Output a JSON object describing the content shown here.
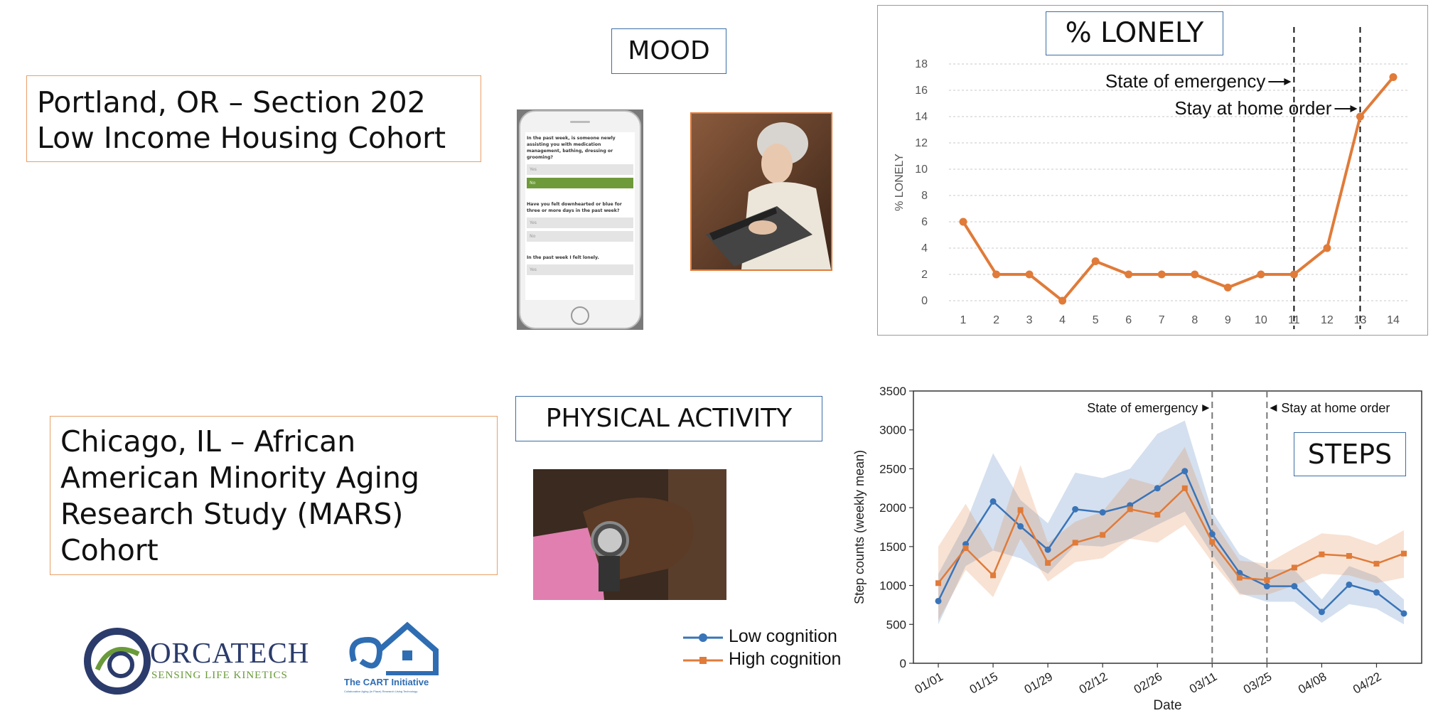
{
  "cohorts": {
    "portland": {
      "line1": "Portland, OR – Section 202",
      "line2": "Low Income Housing Cohort"
    },
    "chicago": {
      "line1": "Chicago, IL – African",
      "line2": "American Minority Aging",
      "line3": "Research Study (MARS)",
      "line4": "Cohort"
    }
  },
  "labels": {
    "mood": "MOOD",
    "physical_activity": "PHYSICAL ACTIVITY"
  },
  "phone_survey": {
    "q1": "In the past week, is someone newly assisting you with medication management, bathing, dressing or grooming?",
    "yes": "Yes",
    "no": "No",
    "q2": "Have you felt downhearted or blue for three or more days in the past week?",
    "q3": "In the past week I felt lonely."
  },
  "logos": {
    "orcatech_name": "ORCATECH",
    "orcatech_tagline": "SENSING LIFE KINETICS",
    "cart_name": "The CART Initiative",
    "cart_tagline": "Collaborative Aging (in Place) Research Using Technology"
  },
  "colors": {
    "orange": "#e07b39",
    "blue": "#3a74b8",
    "box_orange": "#e8a068",
    "box_blue": "#3b6ea5"
  },
  "chart_data": [
    {
      "type": "line",
      "title": "% LONELY",
      "ylabel": "% LONELY",
      "xlabel": "",
      "x": [
        1,
        2,
        3,
        4,
        5,
        6,
        7,
        8,
        9,
        10,
        11,
        12,
        13,
        14
      ],
      "ylim": [
        0,
        18
      ],
      "yticks": [
        0,
        2,
        4,
        6,
        8,
        10,
        12,
        14,
        16,
        18
      ],
      "values": [
        6,
        2,
        2,
        0,
        3,
        2,
        2,
        2,
        1,
        2,
        2,
        4,
        14,
        17
      ],
      "grid": "horizontal dotted",
      "annotations": [
        {
          "text": "State of emergency",
          "x": 11
        },
        {
          "text": "Stay at home order",
          "x": 13
        }
      ],
      "color": "#e07b39"
    },
    {
      "type": "line",
      "title": "STEPS",
      "xlabel": "Date",
      "ylabel": "Step counts (weekly mean)",
      "ylim": [
        0,
        3500
      ],
      "yticks": [
        0,
        500,
        1000,
        1500,
        2000,
        2500,
        3000,
        3500
      ],
      "x_tick_labels": [
        "01/01",
        "01/15",
        "01/29",
        "02/12",
        "02/26",
        "03/11",
        "03/25",
        "04/08",
        "04/22"
      ],
      "x": [
        "01/01",
        "01/08",
        "01/15",
        "01/22",
        "01/29",
        "02/05",
        "02/12",
        "02/19",
        "02/26",
        "03/04",
        "03/11",
        "03/18",
        "03/25",
        "04/01",
        "04/08",
        "04/15",
        "04/22",
        "04/29"
      ],
      "series": [
        {
          "name": "Low cognition",
          "color": "#3a74b8",
          "values": [
            800,
            1530,
            2080,
            1760,
            1460,
            1980,
            1940,
            2030,
            2250,
            2470,
            1660,
            1160,
            990,
            990,
            660,
            1010,
            910,
            640
          ],
          "lower": [
            500,
            1250,
            1450,
            1350,
            1150,
            1520,
            1500,
            1600,
            1780,
            1950,
            1400,
            900,
            790,
            790,
            520,
            760,
            700,
            500
          ],
          "upper": [
            1150,
            1800,
            2700,
            2100,
            1800,
            2450,
            2380,
            2500,
            2950,
            3120,
            1950,
            1400,
            1210,
            1200,
            820,
            1250,
            1120,
            820
          ]
        },
        {
          "name": "High cognition",
          "color": "#e07b39",
          "values": [
            1030,
            1480,
            1130,
            1970,
            1290,
            1550,
            1650,
            1980,
            1910,
            2250,
            1560,
            1100,
            1070,
            1230,
            1400,
            1380,
            1280,
            1410
          ],
          "lower": [
            550,
            1200,
            850,
            1600,
            1050,
            1300,
            1350,
            1600,
            1550,
            1780,
            1300,
            880,
            880,
            1000,
            1150,
            1130,
            1030,
            1100
          ],
          "upper": [
            1500,
            2050,
            1450,
            2550,
            1550,
            1820,
            1950,
            2380,
            2280,
            2780,
            1850,
            1320,
            1280,
            1480,
            1670,
            1640,
            1520,
            1710
          ]
        }
      ],
      "annotations": [
        {
          "text": "State of emergency",
          "x": "03/11"
        },
        {
          "text": "Stay at home order",
          "x": "03/25"
        }
      ]
    }
  ]
}
